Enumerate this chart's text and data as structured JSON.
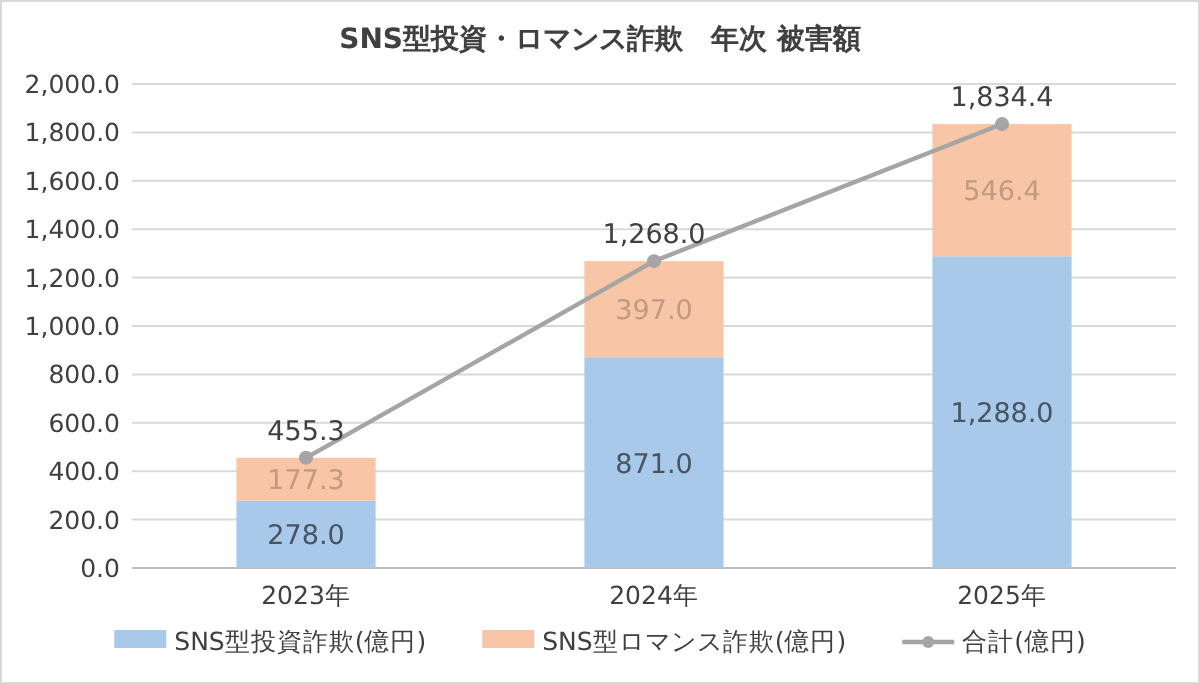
{
  "chart_data": {
    "type": "bar",
    "title": "SNS型投資・ロマンス詐欺　年次 被害額",
    "stacked": true,
    "categories": [
      "2023年",
      "2024年",
      "2025年"
    ],
    "series": [
      {
        "name": "SNS型投資詐欺(億円)",
        "color": "#a9c9ea",
        "values": [
          278.0,
          871.0,
          1288.0
        ],
        "value_labels": [
          "278.0",
          "871.0",
          "1,288.0"
        ]
      },
      {
        "name": "SNS型ロマンス詐欺(億円)",
        "color": "#f8c6a6",
        "values": [
          177.3,
          397.0,
          546.4
        ],
        "value_labels": [
          "177.3",
          "397.0",
          "546.4"
        ]
      },
      {
        "name": "合計(億円)",
        "type": "line",
        "color": "#a5a5a5",
        "marker": "circle",
        "values": [
          455.3,
          1268.0,
          1834.4
        ],
        "value_labels": [
          "455.3",
          "1,268.0",
          "1,834.4"
        ]
      }
    ],
    "ylim": [
      0,
      2000
    ],
    "yticks": [
      {
        "value": 0,
        "label": "0.0"
      },
      {
        "value": 200,
        "label": "200.0"
      },
      {
        "value": 400,
        "label": "400.0"
      },
      {
        "value": 600,
        "label": "600.0"
      },
      {
        "value": 800,
        "label": "800.0"
      },
      {
        "value": 1000,
        "label": "1,000.0"
      },
      {
        "value": 1200,
        "label": "1,200.0"
      },
      {
        "value": 1400,
        "label": "1,400.0"
      },
      {
        "value": 1600,
        "label": "1,600.0"
      },
      {
        "value": 1800,
        "label": "1,800.0"
      },
      {
        "value": 2000,
        "label": "2,000.0"
      }
    ],
    "grid": "y",
    "legend": "bottom"
  }
}
